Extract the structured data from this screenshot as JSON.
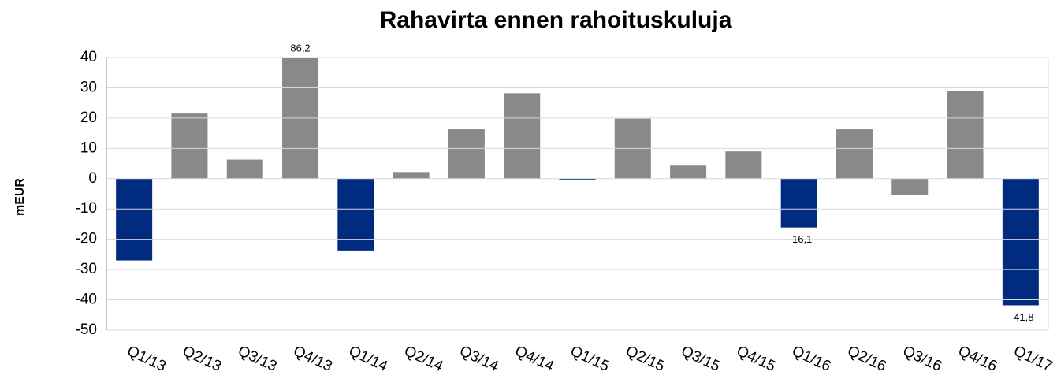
{
  "chart_data": {
    "type": "bar",
    "title": "Rahavirta ennen rahoituskuluja",
    "y_label": "mEUR",
    "categories": [
      "Q1/13",
      "Q2/13",
      "Q3/13",
      "Q4/13",
      "Q1/14",
      "Q2/14",
      "Q3/14",
      "Q4/14",
      "Q1/15",
      "Q2/15",
      "Q3/15",
      "Q4/15",
      "Q1/16",
      "Q2/16",
      "Q3/16",
      "Q4/16",
      "Q1/17"
    ],
    "values": [
      -27,
      21.5,
      6.3,
      86.2,
      -23.7,
      2.2,
      16.3,
      28.2,
      -0.5,
      19.8,
      4.3,
      9,
      -16.1,
      16.3,
      -5.5,
      29,
      -41.8
    ],
    "value_labels": [
      null,
      null,
      null,
      "86,2",
      null,
      null,
      null,
      null,
      null,
      null,
      null,
      null,
      "- 16,1",
      null,
      null,
      null,
      "- 41,8"
    ],
    "colors": [
      "#002b7f",
      "#898989",
      "#898989",
      "#898989",
      "#002b7f",
      "#898989",
      "#898989",
      "#898989",
      "#002b7f",
      "#898989",
      "#898989",
      "#898989",
      "#002b7f",
      "#898989",
      "#898989",
      "#898989",
      "#002b7f"
    ],
    "ylim": [
      -50,
      40
    ],
    "yticks": [
      -50,
      -40,
      -30,
      -20,
      -10,
      0,
      10,
      20,
      30,
      40
    ],
    "grid": true
  }
}
